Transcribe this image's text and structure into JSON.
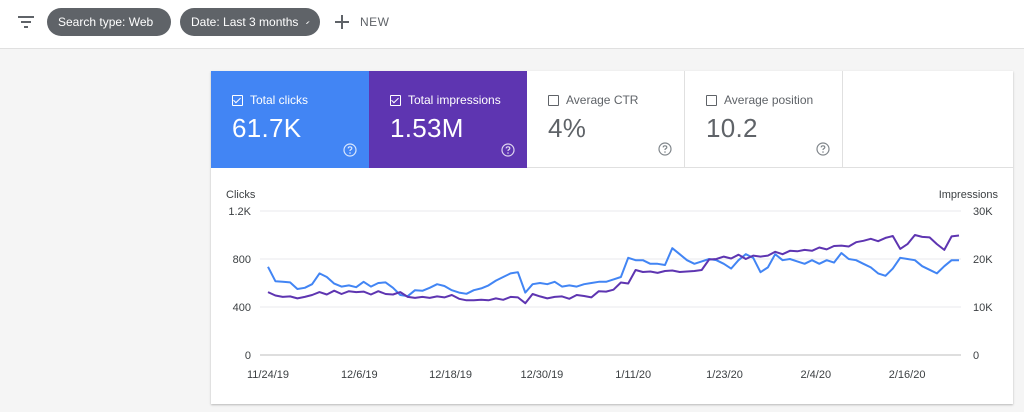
{
  "toolbar": {
    "filter_icon": "filter-list-icon",
    "chips": [
      {
        "label": "Search type: Web",
        "icon": "pencil-icon"
      },
      {
        "label": "Date: Last 3 months",
        "icon": "pencil-icon"
      }
    ],
    "new_label": "NEW",
    "new_icon": "plus-icon"
  },
  "metrics": [
    {
      "label": "Total clicks",
      "value": "61.7K",
      "checked": true,
      "color": "#4285f4"
    },
    {
      "label": "Total impressions",
      "value": "1.53M",
      "checked": true,
      "color": "#5e35b1"
    },
    {
      "label": "Average CTR",
      "value": "4%",
      "checked": false
    },
    {
      "label": "Average position",
      "value": "10.2",
      "checked": false
    }
  ],
  "chart_data": {
    "type": "line",
    "left_axis_title": "Clicks",
    "right_axis_title": "Impressions",
    "left_ticks": [
      "0",
      "400",
      "800",
      "1.2K"
    ],
    "right_ticks": [
      "0",
      "10K",
      "20K",
      "30K"
    ],
    "ylim_left": [
      0,
      1200
    ],
    "ylim_right": [
      0,
      30000
    ],
    "x_tick_labels": [
      "11/24/19",
      "12/6/19",
      "12/18/19",
      "12/30/19",
      "1/11/20",
      "1/23/20",
      "2/4/20",
      "2/16/20"
    ],
    "grid": true,
    "series": [
      {
        "name": "Clicks",
        "axis": "left",
        "color": "#4285f4",
        "values": [
          735,
          615,
          610,
          605,
          550,
          560,
          590,
          680,
          650,
          595,
          570,
          580,
          565,
          610,
          570,
          600,
          605,
          560,
          500,
          490,
          540,
          535,
          560,
          590,
          575,
          540,
          520,
          510,
          540,
          555,
          580,
          620,
          650,
          680,
          690,
          520,
          590,
          600,
          590,
          610,
          570,
          580,
          570,
          590,
          600,
          610,
          610,
          630,
          650,
          810,
          790,
          790,
          760,
          760,
          750,
          890,
          840,
          790,
          760,
          780,
          800,
          790,
          760,
          720,
          790,
          840,
          810,
          690,
          730,
          840,
          790,
          800,
          780,
          760,
          790,
          760,
          790,
          770,
          850,
          800,
          790,
          760,
          730,
          680,
          660,
          720,
          810,
          800,
          790,
          740,
          710,
          680,
          740,
          790,
          790
        ]
      },
      {
        "name": "Impressions",
        "axis": "right",
        "color": "#5e35b1",
        "values": [
          13100,
          12400,
          12100,
          12200,
          11800,
          12100,
          12500,
          13100,
          12600,
          13400,
          12700,
          13300,
          13100,
          13200,
          12600,
          13300,
          12700,
          12600,
          13100,
          12100,
          11900,
          12100,
          11900,
          12200,
          12000,
          12500,
          11700,
          11400,
          11400,
          11500,
          11400,
          11800,
          11500,
          12100,
          12000,
          10800,
          12700,
          12200,
          11800,
          12100,
          12200,
          11700,
          12500,
          12300,
          12000,
          13300,
          13200,
          13600,
          15100,
          14900,
          17700,
          17300,
          17400,
          17100,
          17500,
          17600,
          17300,
          17400,
          17500,
          17700,
          19900,
          20000,
          20500,
          20100,
          20900,
          20000,
          20700,
          20500,
          20700,
          21500,
          21000,
          21700,
          21600,
          21900,
          21700,
          22400,
          22000,
          22700,
          22800,
          22600,
          23500,
          23800,
          24200,
          23700,
          24400,
          24800,
          22100,
          23100,
          25000,
          24600,
          24500,
          23100,
          21900,
          24700,
          24900
        ]
      }
    ]
  }
}
